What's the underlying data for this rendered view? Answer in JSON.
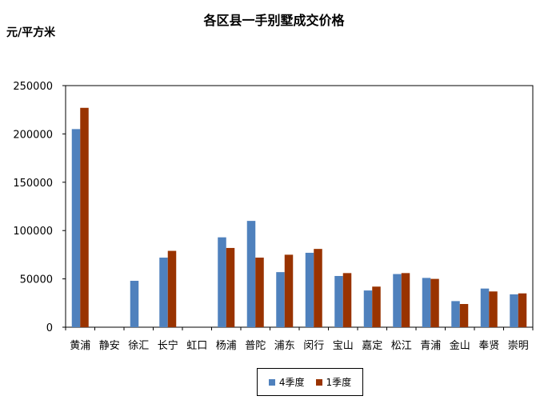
{
  "chart_data": {
    "type": "bar",
    "title": "各区县一手别墅成交价格",
    "ylabel": "元/平方米",
    "xlabel": "",
    "ylim": [
      0,
      250000
    ],
    "yticks": [
      0,
      50000,
      100000,
      150000,
      200000,
      250000
    ],
    "grid": false,
    "legend_position": "bottom",
    "categories": [
      "黄浦",
      "静安",
      "徐汇",
      "长宁",
      "虹口",
      "杨浦",
      "普陀",
      "浦东",
      "闵行",
      "宝山",
      "嘉定",
      "松江",
      "青浦",
      "金山",
      "奉贤",
      "崇明"
    ],
    "series": [
      {
        "name": "4季度",
        "color": "#4F81BD",
        "values": [
          205000,
          0,
          48000,
          72000,
          0,
          93000,
          110000,
          57000,
          77000,
          53000,
          38000,
          55000,
          51000,
          27000,
          40000,
          34000
        ]
      },
      {
        "name": "1季度",
        "color": "#993300",
        "values": [
          227000,
          0,
          null,
          79000,
          0,
          82000,
          72000,
          75000,
          81000,
          56000,
          42000,
          56000,
          50000,
          24000,
          37000,
          35000
        ]
      }
    ]
  }
}
